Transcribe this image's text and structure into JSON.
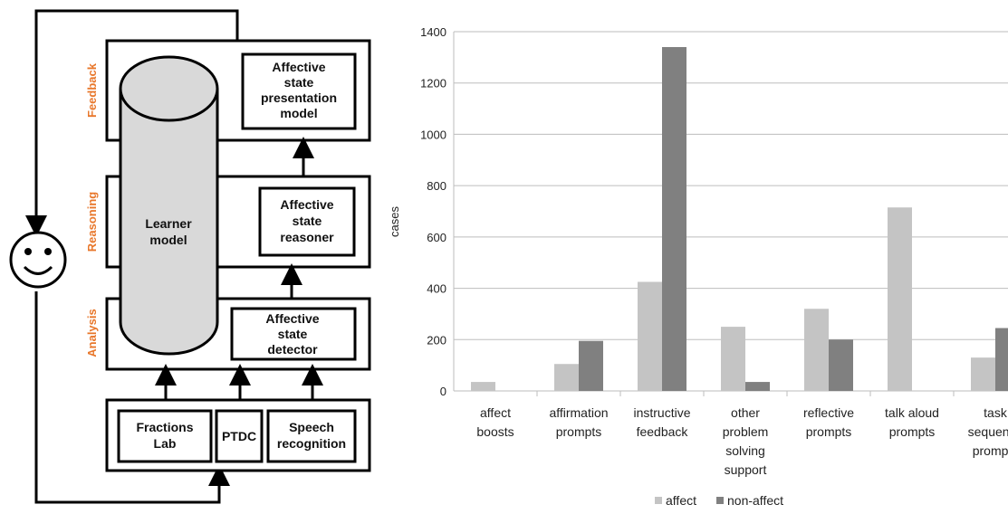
{
  "diagram": {
    "layers": {
      "feedback": "Feedback",
      "reasoning": "Reasoning",
      "analysis": "Analysis"
    },
    "learner_model": [
      "Learner",
      "model"
    ],
    "presentation_model": [
      "Affective",
      "state",
      "presentation",
      "model"
    ],
    "reasoner": [
      "Affective",
      "state",
      "reasoner"
    ],
    "detector": [
      "Affective",
      "state",
      "detector"
    ],
    "inputs": {
      "fractions_lab": [
        "Fractions",
        "Lab"
      ],
      "ptdc": "PTDC",
      "speech": [
        "Speech",
        "recognition"
      ]
    }
  },
  "chart_data": {
    "type": "bar",
    "ylabel": "cases",
    "ylim": [
      0,
      1400
    ],
    "yticks": [
      0,
      200,
      400,
      600,
      800,
      1000,
      1200,
      1400
    ],
    "categories": [
      [
        "affect",
        "boosts"
      ],
      [
        "affirmation",
        "prompts"
      ],
      [
        "instructive",
        "feedback"
      ],
      [
        "other",
        "problem",
        "solving",
        "support"
      ],
      [
        "reflective",
        "prompts"
      ],
      [
        "talk aloud",
        "prompts"
      ],
      [
        "task",
        "sequence",
        "prompts"
      ]
    ],
    "series": [
      {
        "name": "affect",
        "color": "#c4c4c4",
        "values": [
          35,
          105,
          425,
          250,
          320,
          715,
          130
        ]
      },
      {
        "name": "non-affect",
        "color": "#808080",
        "values": [
          0,
          195,
          1340,
          35,
          200,
          0,
          245
        ]
      }
    ],
    "legend_position": "bottom",
    "grid": true
  }
}
